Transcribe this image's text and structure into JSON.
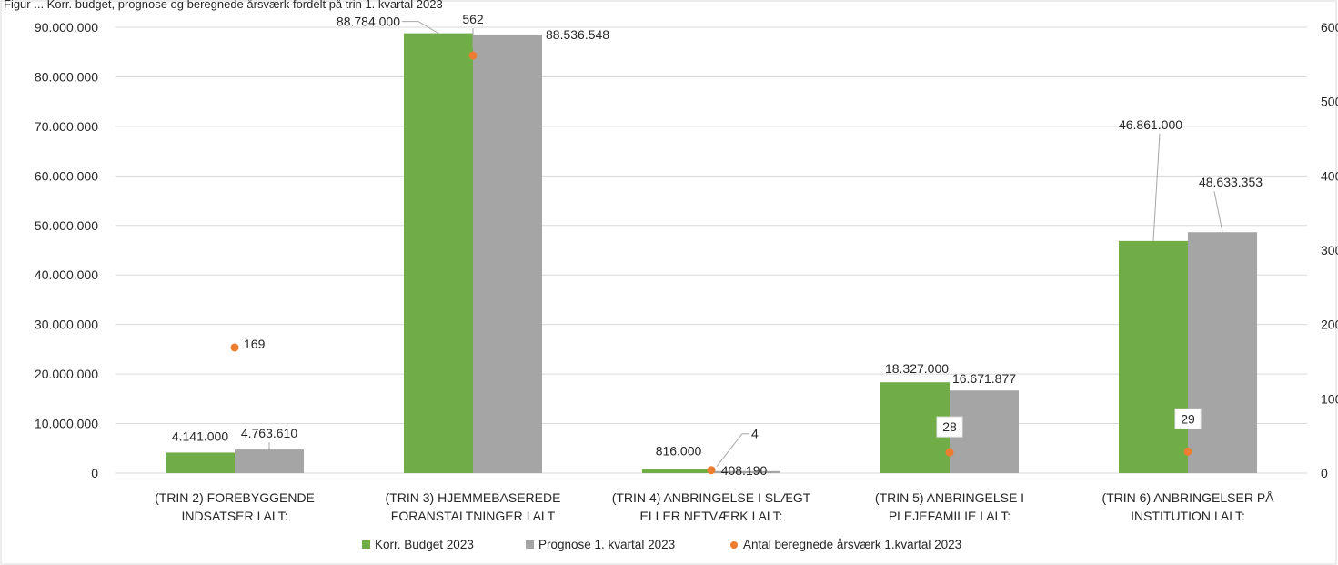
{
  "top_caption": "Figur ... Korr. budget, prognose og beregnede årsværk fordelt på trin 1. kvartal 2023",
  "chart_data": {
    "type": "bar",
    "categories": [
      [
        "(TRIN 2) FOREBYGGENDE",
        "INDSATSER I ALT:"
      ],
      [
        "(TRIN 3) HJEMMEBASEREDE",
        "FORANSTALTNINGER I ALT"
      ],
      [
        "(TRIN 4) ANBRINGELSE I SLÆGT",
        "ELLER NETVÆRK I ALT:"
      ],
      [
        "(TRIN 5) ANBRINGELSE I",
        "PLEJEFAMILIE I ALT:"
      ],
      [
        "(TRIN 6) ANBRINGELSER PÅ",
        "INSTITUTION I ALT:"
      ]
    ],
    "series": [
      {
        "name": "Korr. Budget 2023",
        "kind": "bar",
        "axis": "left",
        "color": "#70AD47",
        "values": [
          4141000,
          88784000,
          816000,
          18327000,
          46861000
        ],
        "labels": [
          "4.141.000",
          "88.784.000",
          "816.000",
          "18.327.000",
          "46.861.000"
        ]
      },
      {
        "name": "Prognose 1. kvartal 2023",
        "kind": "bar",
        "axis": "left",
        "color": "#A5A5A5",
        "values": [
          4763610,
          88536548,
          408190,
          16671877,
          48633353
        ],
        "labels": [
          "4.763.610",
          "88.536.548",
          "408.190",
          "16.671.877",
          "48.633.353"
        ]
      },
      {
        "name": "Antal beregnede årsværk 1.kvartal 2023",
        "kind": "scatter",
        "axis": "right",
        "color": "#ED7D31",
        "values": [
          169,
          562,
          4,
          28,
          29
        ],
        "labels": [
          "169",
          "562",
          "4",
          "28",
          "29"
        ]
      }
    ],
    "y_left": {
      "range": [
        0,
        90000000
      ],
      "ticks": [
        0,
        10000000,
        20000000,
        30000000,
        40000000,
        50000000,
        60000000,
        70000000,
        80000000,
        90000000
      ],
      "tick_labels": [
        "0",
        "10.000.000",
        "20.000.000",
        "30.000.000",
        "40.000.000",
        "50.000.000",
        "60.000.000",
        "70.000.000",
        "80.000.000",
        "90.000.000"
      ]
    },
    "y_right": {
      "range": [
        0,
        600
      ],
      "ticks": [
        0,
        100,
        200,
        300,
        400,
        500,
        600
      ],
      "tick_labels": [
        "0",
        "100",
        "200",
        "300",
        "400",
        "500",
        "600"
      ]
    },
    "grid": true,
    "legend": "bottom"
  }
}
